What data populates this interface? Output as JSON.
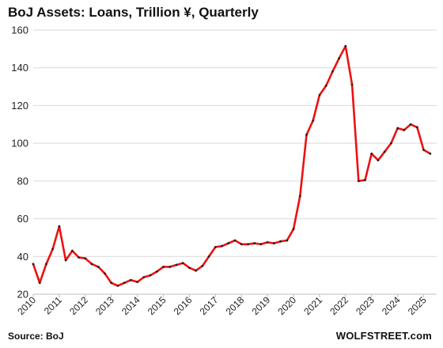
{
  "chart_data": {
    "type": "line",
    "title": "BoJ Assets: Loans, Trillion ¥, Quarterly",
    "xlabel": "",
    "ylabel": "",
    "ylim": [
      20,
      160
    ],
    "xlim": [
      2010.0,
      2025.5
    ],
    "y_ticks": [
      20,
      40,
      60,
      80,
      100,
      120,
      140,
      160
    ],
    "x_ticks": [
      "2010",
      "2011",
      "2012",
      "2013",
      "2014",
      "2015",
      "2016",
      "2017",
      "2018",
      "2019",
      "2020",
      "2021",
      "2022",
      "2023",
      "2024",
      "2025"
    ],
    "grid": "horizontal",
    "line_color": "#ee1111",
    "marker_color": "#222222",
    "series": [
      {
        "x": [
          2010.0,
          2010.25,
          2010.5,
          2010.75,
          2011.0,
          2011.25,
          2011.5,
          2011.75,
          2012.0,
          2012.25,
          2012.5,
          2012.75,
          2013.0,
          2013.25,
          2013.5,
          2013.75,
          2014.0,
          2014.25,
          2014.5,
          2014.75,
          2015.0,
          2015.25,
          2015.5,
          2015.75,
          2016.0,
          2016.25,
          2016.5,
          2016.75,
          2017.0,
          2017.25,
          2017.5,
          2017.75,
          2018.0,
          2018.25,
          2018.5,
          2018.75,
          2019.0,
          2019.25,
          2019.5,
          2019.75,
          2020.0,
          2020.25,
          2020.5,
          2020.75,
          2021.0,
          2021.25,
          2021.5,
          2021.75,
          2022.0,
          2022.25,
          2022.5,
          2022.75,
          2023.0,
          2023.25,
          2023.5,
          2023.75,
          2024.0,
          2024.25,
          2024.5,
          2024.75,
          2025.0,
          2025.25
        ],
        "values": [
          36,
          26,
          36,
          44,
          56,
          38,
          43,
          39.5,
          39,
          36,
          34.5,
          31,
          26,
          24.5,
          26,
          27.5,
          26.5,
          29,
          30,
          32,
          34.5,
          34.5,
          35.5,
          36.5,
          34,
          32.5,
          35,
          40,
          45,
          45.5,
          47,
          48.5,
          46.5,
          46.5,
          47,
          46.5,
          47.5,
          47,
          48,
          48.5,
          54.5,
          72,
          104.5,
          112,
          125.5,
          130.5,
          138,
          145,
          151.5,
          131,
          80,
          80.5,
          94.5,
          91,
          95.5,
          100,
          108,
          107,
          110,
          108.5,
          96.5,
          94.5
        ]
      }
    ]
  },
  "footer": {
    "source": "Source: BoJ",
    "brand": "WOLFSTREET.com"
  }
}
